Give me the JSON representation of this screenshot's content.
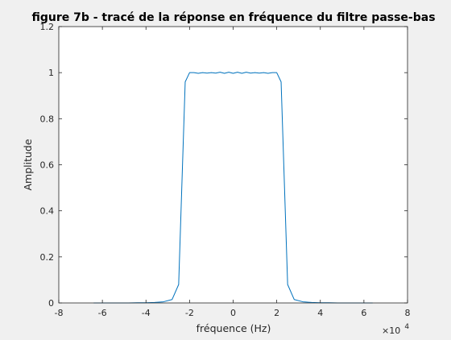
{
  "chart_data": {
    "type": "line",
    "title": "figure 7b - tracé de la réponse en fréquence du filtre passe-bas",
    "xlabel": "fréquence (Hz)",
    "ylabel": "Amplitude",
    "x_exponent_label": "×10",
    "x_exponent_power": "4",
    "xlim": [
      -80000,
      80000
    ],
    "ylim": [
      0,
      1.2
    ],
    "x_ticks": [
      -80000,
      -60000,
      -40000,
      -20000,
      0,
      20000,
      40000,
      60000,
      80000
    ],
    "x_tick_labels": [
      "-8",
      "-6",
      "-4",
      "-2",
      "0",
      "2",
      "4",
      "6",
      "8"
    ],
    "y_ticks": [
      0,
      0.2,
      0.4,
      0.6,
      0.8,
      1,
      1.2
    ],
    "y_tick_labels": [
      "0",
      "0.2",
      "0.4",
      "0.6",
      "0.8",
      "1",
      "1.2"
    ],
    "grid": false,
    "series": [
      {
        "color": "#0072bd",
        "x": [
          -64000,
          -60000,
          -56000,
          -52000,
          -48000,
          -44000,
          -40000,
          -36000,
          -32000,
          -28000,
          -25000,
          -22000,
          -20000,
          -18000,
          -16000,
          -14000,
          -12000,
          -10000,
          -8000,
          -6000,
          -4000,
          -2000,
          0,
          2000,
          4000,
          6000,
          8000,
          10000,
          12000,
          14000,
          16000,
          18000,
          20000,
          22000,
          25000,
          28000,
          32000,
          36000,
          40000,
          44000,
          48000,
          52000,
          56000,
          60000,
          64000
        ],
        "y": [
          0,
          0,
          0,
          0,
          0,
          0.001,
          0.001,
          0.002,
          0.005,
          0.015,
          0.08,
          0.96,
          1.0,
          1.0,
          0.997,
          1.0,
          0.998,
          1.0,
          0.998,
          1.002,
          0.997,
          1.002,
          0.997,
          1.002,
          0.997,
          1.002,
          0.998,
          1.0,
          0.998,
          1.0,
          0.997,
          1.0,
          1.0,
          0.96,
          0.08,
          0.015,
          0.005,
          0.002,
          0.001,
          0.001,
          0,
          0,
          0,
          0,
          0
        ]
      }
    ]
  }
}
